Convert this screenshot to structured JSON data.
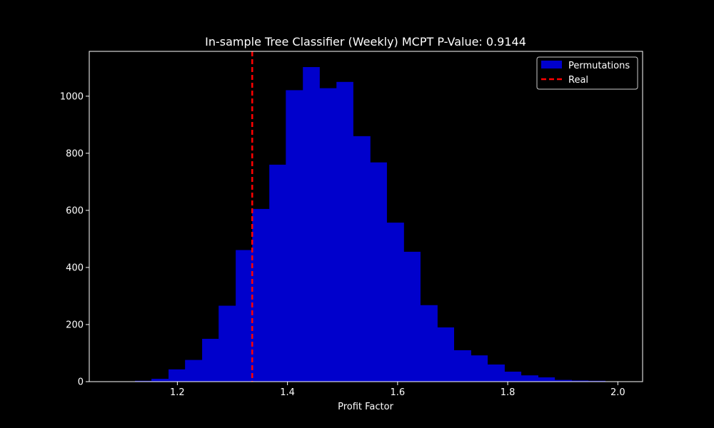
{
  "chart_data": {
    "type": "bar",
    "title": "In-sample Tree Classifier (Weekly) MCPT P-Value: 0.9144",
    "xlabel": "Profit Factor",
    "ylabel": "",
    "xlim": [
      1.04,
      2.045
    ],
    "ylim": [
      0,
      1157
    ],
    "x_ticks": [
      1.2,
      1.4,
      1.6,
      1.8,
      2.0
    ],
    "x_tick_labels": [
      "1.2",
      "1.4",
      "1.6",
      "1.8",
      "2.0"
    ],
    "y_ticks": [
      0,
      200,
      400,
      600,
      800,
      1000
    ],
    "y_tick_labels": [
      "0",
      "200",
      "400",
      "600",
      "800",
      "1000"
    ],
    "grid": false,
    "legend_position": "top-right",
    "series": [
      {
        "name": "Permutations",
        "color": "#0000cc",
        "bins": [
          {
            "x0": 1.123,
            "x1": 1.153,
            "value": 3
          },
          {
            "x0": 1.153,
            "x1": 1.184,
            "value": 10
          },
          {
            "x0": 1.184,
            "x1": 1.214,
            "value": 43
          },
          {
            "x0": 1.214,
            "x1": 1.245,
            "value": 76
          },
          {
            "x0": 1.245,
            "x1": 1.275,
            "value": 150
          },
          {
            "x0": 1.275,
            "x1": 1.306,
            "value": 266
          },
          {
            "x0": 1.306,
            "x1": 1.336,
            "value": 461
          },
          {
            "x0": 1.336,
            "x1": 1.367,
            "value": 605
          },
          {
            "x0": 1.367,
            "x1": 1.397,
            "value": 760
          },
          {
            "x0": 1.397,
            "x1": 1.428,
            "value": 1021
          },
          {
            "x0": 1.428,
            "x1": 1.458,
            "value": 1102
          },
          {
            "x0": 1.458,
            "x1": 1.489,
            "value": 1028
          },
          {
            "x0": 1.489,
            "x1": 1.519,
            "value": 1050
          },
          {
            "x0": 1.519,
            "x1": 1.55,
            "value": 860
          },
          {
            "x0": 1.55,
            "x1": 1.58,
            "value": 768
          },
          {
            "x0": 1.58,
            "x1": 1.611,
            "value": 557
          },
          {
            "x0": 1.611,
            "x1": 1.641,
            "value": 455
          },
          {
            "x0": 1.641,
            "x1": 1.672,
            "value": 268
          },
          {
            "x0": 1.672,
            "x1": 1.702,
            "value": 190
          },
          {
            "x0": 1.702,
            "x1": 1.733,
            "value": 110
          },
          {
            "x0": 1.733,
            "x1": 1.763,
            "value": 92
          },
          {
            "x0": 1.763,
            "x1": 1.794,
            "value": 60
          },
          {
            "x0": 1.794,
            "x1": 1.824,
            "value": 35
          },
          {
            "x0": 1.824,
            "x1": 1.855,
            "value": 22
          },
          {
            "x0": 1.855,
            "x1": 1.885,
            "value": 15
          },
          {
            "x0": 1.885,
            "x1": 1.916,
            "value": 6
          },
          {
            "x0": 1.916,
            "x1": 1.946,
            "value": 4
          },
          {
            "x0": 1.946,
            "x1": 1.977,
            "value": 3
          }
        ]
      },
      {
        "name": "Real",
        "type": "vline",
        "color": "#ff0000",
        "style": "dashed",
        "x": 1.336
      }
    ]
  }
}
